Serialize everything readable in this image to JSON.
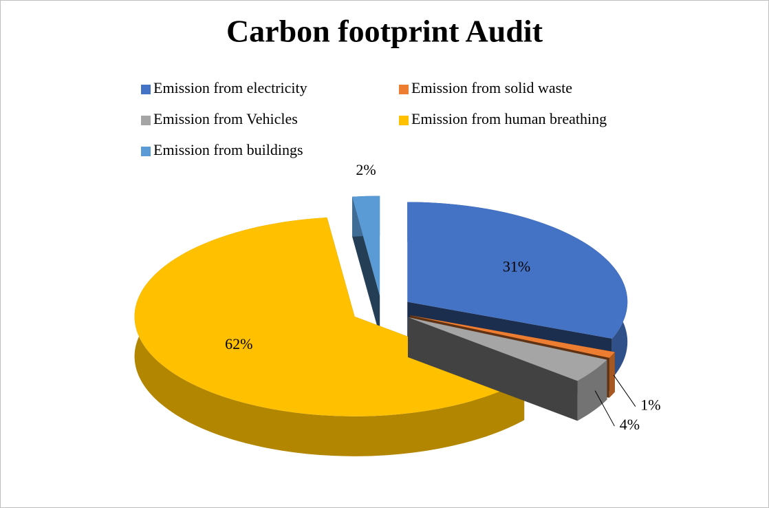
{
  "chart_data": {
    "type": "pie",
    "title": "Carbon footprint Audit",
    "categories": [
      "Emission from electricity",
      "Emission from solid waste",
      "Emission from Vehicles",
      "Emission from human breathing",
      "Emission from buildings"
    ],
    "values": [
      31,
      1,
      4,
      62,
      2
    ],
    "value_labels": [
      "31%",
      "1%",
      "4%",
      "62%",
      "2%"
    ],
    "colors": [
      "#4472c4",
      "#ed7d31",
      "#a5a5a5",
      "#ffc000",
      "#5b9bd5"
    ]
  }
}
